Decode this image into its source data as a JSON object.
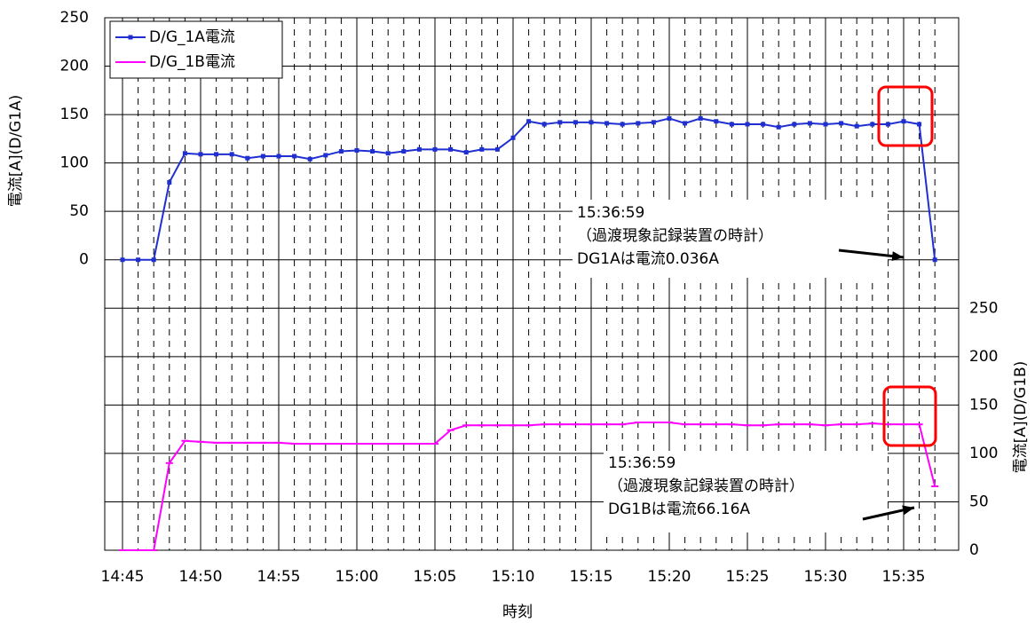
{
  "chart_data": {
    "type": "line",
    "xlabel": "時刻",
    "ylabel": "電流[A](D/G1A)",
    "y2label": "電流[A](D/G1B)",
    "categories": [
      "14:45",
      null,
      null,
      null,
      null,
      "14:50",
      null,
      null,
      null,
      null,
      "14:55",
      null,
      null,
      null,
      null,
      "15:00",
      null,
      null,
      null,
      null,
      "15:05",
      null,
      null,
      null,
      null,
      "15:10",
      null,
      null,
      null,
      null,
      "15:15",
      null,
      null,
      null,
      null,
      "15:20",
      null,
      null,
      null,
      null,
      "15:25",
      null,
      null,
      null,
      null,
      "15:30",
      null,
      null,
      null,
      null,
      "15:35",
      null,
      null
    ],
    "series": [
      {
        "name": "D/G_1A電流",
        "color": "#1f2fd0",
        "axis": "y",
        "values": [
          0,
          0,
          0,
          80,
          110,
          109,
          109,
          109,
          105,
          107,
          107,
          107,
          104,
          108,
          112,
          113,
          112,
          110,
          112,
          114,
          114,
          114,
          111,
          114,
          114,
          126,
          143,
          140,
          142,
          142,
          142,
          141,
          140,
          141,
          142,
          146,
          141,
          146,
          143,
          140,
          140,
          140,
          137,
          140,
          141,
          140,
          141,
          138,
          140,
          140,
          143,
          140,
          0
        ]
      },
      {
        "name": "D/G_1B電流",
        "color": "#ff00ff",
        "axis": "y2",
        "values": [
          0,
          0,
          0,
          90,
          113,
          112,
          111,
          111,
          111,
          111,
          111,
          110,
          110,
          110,
          110,
          110,
          110,
          110,
          110,
          110,
          110,
          124,
          129,
          129,
          129,
          129,
          129,
          130,
          130,
          130,
          130,
          130,
          130,
          132,
          132,
          132,
          130,
          130,
          130,
          130,
          129,
          129,
          130,
          130,
          130,
          129,
          130,
          130,
          131,
          130,
          130,
          130,
          66
        ]
      }
    ],
    "ylim": [
      -300,
      250
    ],
    "yticks": [
      0,
      50,
      100,
      150,
      200,
      250
    ],
    "y2lim": [
      0,
      550
    ],
    "y2ticks": [
      0,
      50,
      100,
      150,
      200,
      250
    ],
    "grid": true,
    "legend": "upper left",
    "annotations": [
      [
        "15:36:59",
        "（過渡現象記録装置の時計）",
        "DG1Aは電流0.036A"
      ],
      [
        "15:36:59",
        "（過渡現象記録装置の時計）",
        "DG1Bは電流66.16A"
      ]
    ]
  }
}
